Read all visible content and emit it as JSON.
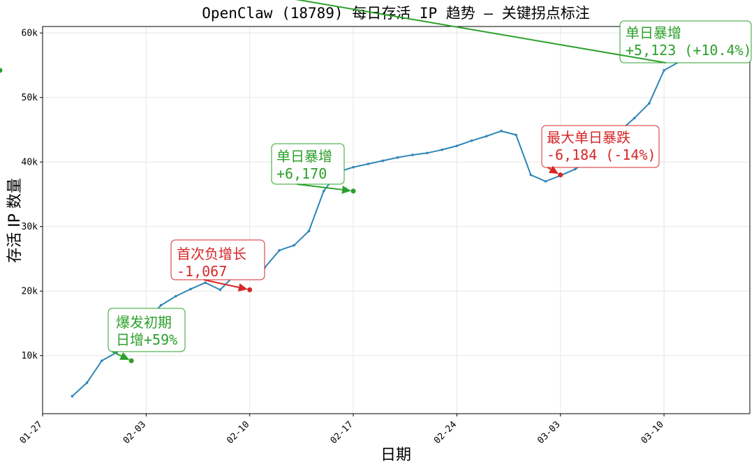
{
  "chart_data": {
    "type": "line",
    "title": "OpenClaw (18789) 每日存活 IP 趋势 — 关键拐点标注",
    "xlabel": "日期",
    "ylabel": "存活 IP 数量",
    "grid": true,
    "colors": {
      "line": "#2e86b8",
      "up": "#2ca02c",
      "down": "#d62728"
    },
    "x_ticks": [
      "01-27",
      "02-03",
      "02-10",
      "02-17",
      "02-24",
      "03-03",
      "03-10"
    ],
    "x_tick_positions": [
      0,
      7,
      14,
      21,
      28,
      35,
      42
    ],
    "xlim": [
      0,
      47.8
    ],
    "y_ticks": [
      10000,
      20000,
      30000,
      40000,
      50000,
      60000
    ],
    "y_tick_labels": [
      "10k",
      "20k",
      "30k",
      "40k",
      "50k",
      "60k"
    ],
    "ylim": [
      1000,
      61000
    ],
    "x": [
      2,
      3,
      4,
      5,
      6,
      7,
      8,
      9,
      10,
      11,
      12,
      13,
      14,
      15,
      16,
      17,
      18,
      19,
      20,
      21,
      22,
      23,
      24,
      25,
      26,
      27,
      28,
      29,
      30,
      31,
      32,
      33,
      34,
      35,
      36,
      37,
      38,
      39,
      40,
      41,
      42,
      43
    ],
    "values": [
      3700,
      5800,
      9200,
      10500,
      13000,
      15400,
      17800,
      19200,
      20300,
      21300,
      20200,
      22500,
      23600,
      23600,
      26300,
      27100,
      29300,
      35500,
      38500,
      39200,
      39700,
      40200,
      40700,
      41100,
      41400,
      41900,
      42500,
      43300,
      44000,
      44800,
      44200,
      38000,
      37000,
      37900,
      38900,
      40400,
      42300,
      44800,
      46800,
      49100,
      54200,
      55500
    ],
    "annotations": [
      {
        "date_index": 4,
        "value": 9200,
        "kind": "up",
        "lines": [
          "爆发初期",
          "日增+59%"
        ]
      },
      {
        "date_index": 12,
        "value": 20200,
        "kind": "down",
        "lines": [
          "首次负增长",
          "-1,067"
        ]
      },
      {
        "date_index": 19,
        "value": 35500,
        "kind": "up",
        "lines": [
          "单日暴增",
          "+6,170"
        ]
      },
      {
        "date_index": 33,
        "value": 38000,
        "kind": "down",
        "lines": [
          "最大单日暴跌",
          "-6,184 (-14%)"
        ]
      },
      {
        "date_index": 42,
        "value": 54200,
        "kind": "up",
        "lines": [
          "单日暴增",
          "+5,123 (+10.4%)"
        ]
      }
    ]
  }
}
